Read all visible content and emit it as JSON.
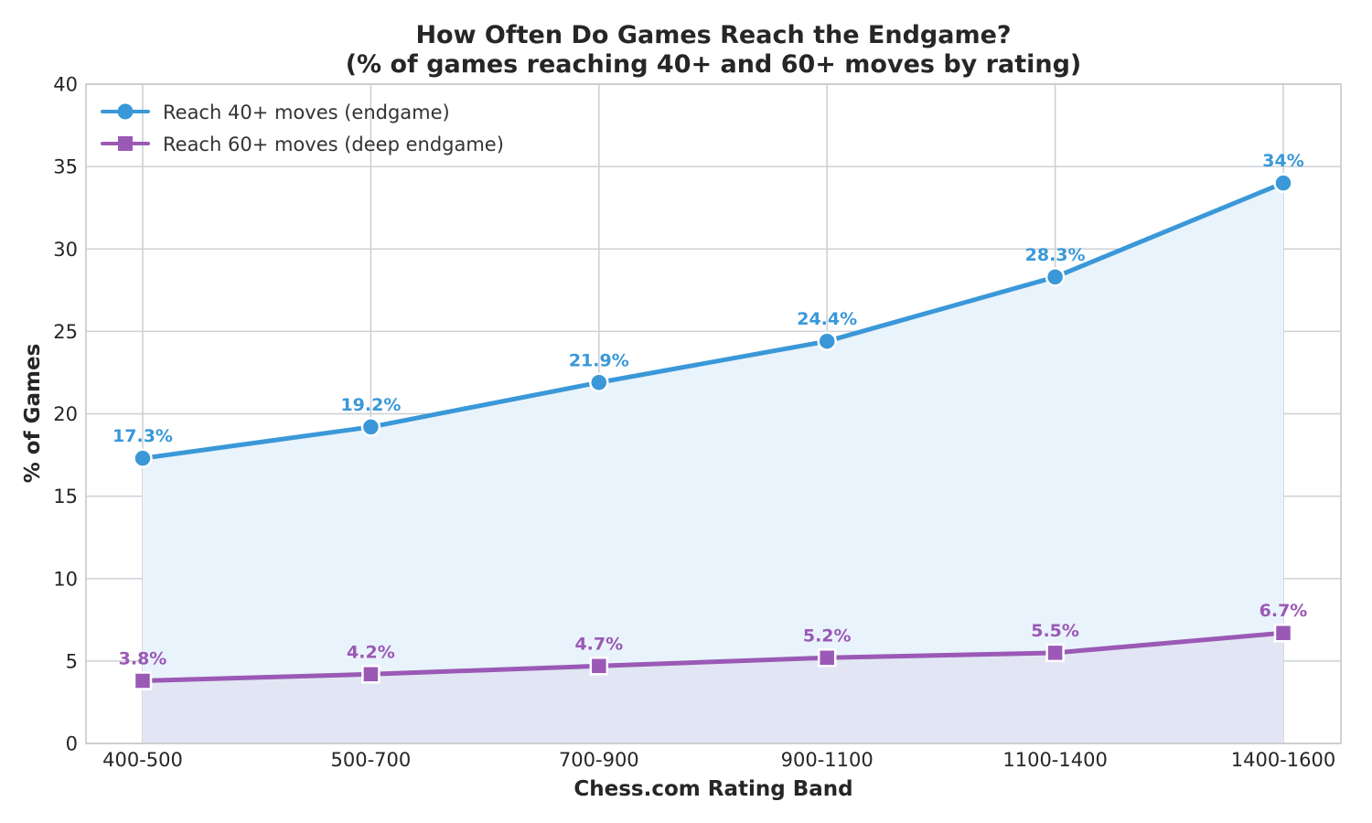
{
  "chart_data": {
    "type": "line",
    "title_line1": "How Often Do Games Reach the Endgame?",
    "title_line2": "(% of games reaching 40+ and 60+ moves by rating)",
    "xlabel": "Chess.com Rating Band",
    "ylabel": "% of Games",
    "categories": [
      "400-500",
      "500-700",
      "700-900",
      "900-1100",
      "1100-1400",
      "1400-1600"
    ],
    "ylim": [
      0,
      40
    ],
    "yticks": [
      "0",
      "5",
      "10",
      "15",
      "20",
      "25",
      "30",
      "35",
      "40"
    ],
    "grid": true,
    "legend_position": "top-left",
    "series": [
      {
        "name": "Reach 40+ moves (endgame)",
        "values": [
          17.3,
          19.2,
          21.9,
          24.4,
          28.3,
          34
        ],
        "labels": [
          "17.3%",
          "19.2%",
          "21.9%",
          "24.4%",
          "28.3%",
          "34%"
        ],
        "color": "#3a98d8",
        "fill": "#e9f3fb",
        "marker": "circle"
      },
      {
        "name": "Reach 60+ moves (deep endgame)",
        "values": [
          3.8,
          4.2,
          4.7,
          5.2,
          5.5,
          6.7
        ],
        "labels": [
          "3.8%",
          "4.2%",
          "4.7%",
          "5.2%",
          "5.5%",
          "6.7%"
        ],
        "color": "#9b59b6",
        "fill": "#e1e3f2",
        "marker": "square"
      }
    ]
  }
}
